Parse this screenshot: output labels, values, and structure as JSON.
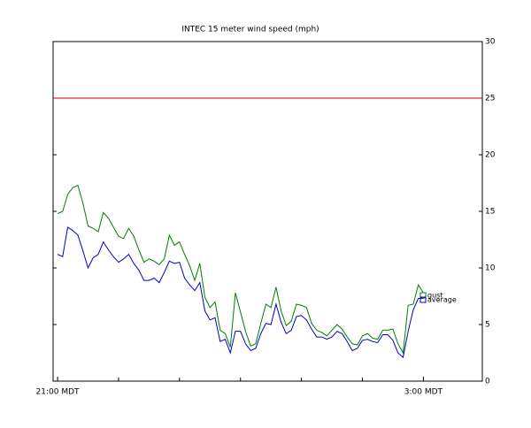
{
  "chart_data": {
    "type": "line",
    "title": "INTEC 15 meter wind speed (mph)",
    "x": [
      0,
      5,
      10,
      15,
      20,
      25,
      30,
      35,
      40,
      45,
      50,
      55,
      60,
      65,
      70,
      75,
      80,
      85,
      90,
      95,
      100,
      105,
      110,
      115,
      120,
      125,
      130,
      135,
      140,
      145,
      150,
      155,
      160,
      165,
      170,
      175,
      180,
      185,
      190,
      195,
      200,
      205,
      210,
      215,
      220,
      225,
      230,
      235,
      240,
      245,
      250,
      255,
      260,
      265,
      270,
      275,
      280,
      285,
      290,
      295,
      300,
      305,
      310,
      315,
      320,
      325,
      330,
      335,
      340,
      345,
      350,
      355,
      360
    ],
    "series": [
      {
        "name": "gust",
        "color": "#007f00",
        "values": [
          14.8,
          15.0,
          16.5,
          17.1,
          17.3,
          15.7,
          13.7,
          13.5,
          13.2,
          14.9,
          14.4,
          13.6,
          12.8,
          12.6,
          13.5,
          12.8,
          11.6,
          10.5,
          10.8,
          10.6,
          10.3,
          10.8,
          12.9,
          12.0,
          12.3,
          11.2,
          10.2,
          8.9,
          10.4,
          7.4,
          6.5,
          7.0,
          4.5,
          4.2,
          3.0,
          7.8,
          6.1,
          4.4,
          3.1,
          3.3,
          5.1,
          6.8,
          6.5,
          8.3,
          6.2,
          4.9,
          5.3,
          6.8,
          6.7,
          6.5,
          5.1,
          4.5,
          4.3,
          4.0,
          4.5,
          5.0,
          4.6,
          3.9,
          3.3,
          3.2,
          4.0,
          4.2,
          3.8,
          3.7,
          4.5,
          4.5,
          4.6,
          3.3,
          2.5,
          6.7,
          6.8,
          8.5,
          7.8
        ]
      },
      {
        "name": "average",
        "color": "#0000cc",
        "values": [
          11.2,
          11.0,
          13.6,
          13.3,
          12.9,
          11.5,
          10.0,
          10.9,
          11.2,
          12.3,
          11.6,
          11.0,
          10.5,
          10.8,
          11.2,
          10.4,
          9.8,
          8.9,
          8.9,
          9.1,
          8.7,
          9.6,
          10.6,
          10.4,
          10.5,
          9.1,
          8.5,
          8.0,
          8.7,
          6.2,
          5.4,
          5.6,
          3.5,
          3.7,
          2.5,
          4.4,
          4.4,
          3.3,
          2.7,
          2.9,
          4.2,
          5.1,
          5.0,
          6.8,
          5.2,
          4.2,
          4.5,
          5.7,
          5.8,
          5.4,
          4.6,
          3.9,
          3.9,
          3.7,
          3.9,
          4.4,
          4.2,
          3.5,
          2.7,
          2.9,
          3.6,
          3.7,
          3.5,
          3.4,
          4.1,
          4.1,
          3.6,
          2.5,
          2.1,
          4.4,
          6.3,
          7.3,
          7.3
        ]
      }
    ],
    "xlim": [
      -4.4,
      418
    ],
    "xticks": [
      {
        "value": 0,
        "label": "21:00 MDT"
      },
      {
        "value": 360,
        "label": "3:00 MDT"
      }
    ],
    "xminorticks": [
      60,
      120,
      180,
      240,
      300
    ],
    "ylim": [
      0,
      30
    ],
    "yticks": [
      0,
      5,
      10,
      15,
      20,
      25,
      30
    ],
    "reference_line": {
      "value": 25,
      "color": "#cc0000"
    },
    "grid": false
  }
}
